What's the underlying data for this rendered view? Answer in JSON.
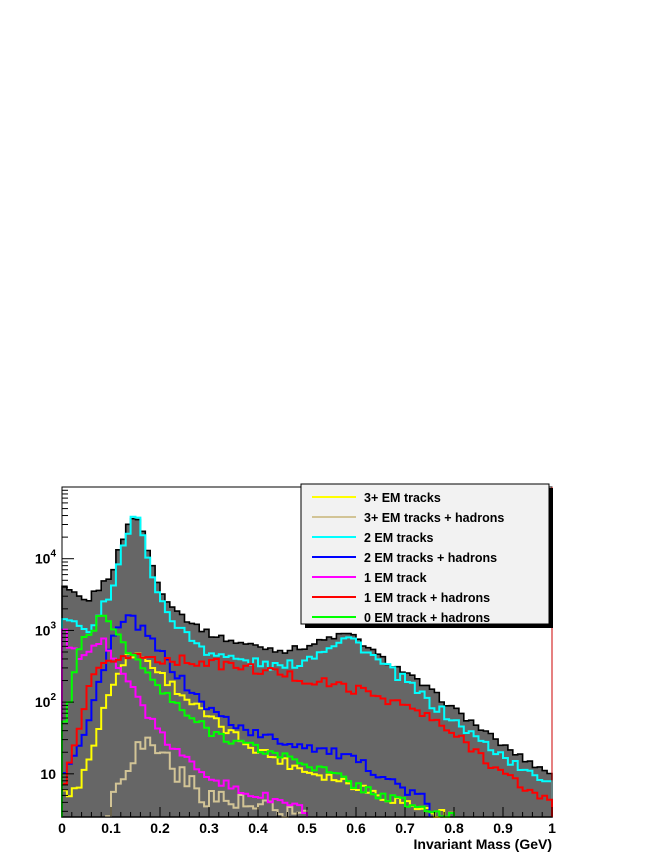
{
  "chart_data": {
    "type": "histogram",
    "xlabel": "Invariant Mass (GeV)",
    "ylabel": "",
    "xlim": [
      0,
      1
    ],
    "ylim": [
      2.5,
      100000
    ],
    "yscale": "log",
    "legend_placement": "top-right",
    "x_ticks": [
      "0",
      "0.1",
      "0.2",
      "0.3",
      "0.4",
      "0.5",
      "0.6",
      "0.7",
      "0.8",
      "0.9",
      "1"
    ],
    "y_ticks": [
      {
        "value": 10,
        "base": "10",
        "exp": ""
      },
      {
        "value": 100,
        "base": "10",
        "exp": "2"
      },
      {
        "value": 1000,
        "base": "10",
        "exp": "3"
      },
      {
        "value": 10000,
        "base": "10",
        "exp": "4"
      }
    ],
    "total": {
      "name": "",
      "color": "#666666",
      "x": [
        0,
        0.05,
        0.1,
        0.13,
        0.15,
        0.17,
        0.2,
        0.25,
        0.3,
        0.35,
        0.4,
        0.45,
        0.5,
        0.55,
        0.58,
        0.6,
        0.65,
        0.7,
        0.75,
        0.8,
        0.85,
        0.9,
        0.95,
        1.0
      ],
      "y": [
        4000,
        2500,
        6000,
        25000,
        45000,
        18000,
        3500,
        1500,
        900,
        700,
        600,
        520,
        600,
        800,
        900,
        780,
        420,
        260,
        150,
        80,
        45,
        25,
        15,
        10
      ]
    },
    "series": [
      {
        "name": "3+ EM tracks",
        "color": "#ffff00",
        "x": [
          0,
          0.03,
          0.06,
          0.09,
          0.12,
          0.15,
          0.18,
          0.2,
          0.25,
          0.3,
          0.35,
          0.4,
          0.45,
          0.5,
          0.55,
          0.6,
          0.65,
          0.7,
          0.75,
          0.8
        ],
        "y": [
          5,
          6,
          20,
          100,
          350,
          500,
          350,
          250,
          120,
          60,
          35,
          22,
          15,
          11,
          9,
          7,
          5,
          4,
          3,
          2.5
        ]
      },
      {
        "name": "3+ EM tracks + hadrons",
        "color": "#d2c496",
        "x": [
          0.09,
          0.1,
          0.12,
          0.15,
          0.18,
          0.2,
          0.23,
          0.25,
          0.3,
          0.35,
          0.4,
          0.45,
          0.5
        ],
        "y": [
          2.5,
          4,
          10,
          22,
          28,
          22,
          12,
          8,
          5,
          4,
          3,
          3,
          2.5
        ]
      },
      {
        "name": "2 EM tracks",
        "color": "#00ffff",
        "x": [
          0,
          0.05,
          0.1,
          0.13,
          0.15,
          0.17,
          0.2,
          0.25,
          0.3,
          0.35,
          0.4,
          0.45,
          0.5,
          0.55,
          0.58,
          0.6,
          0.65,
          0.7,
          0.75,
          0.8,
          0.85,
          0.9,
          0.95,
          1.0
        ],
        "y": [
          1500,
          900,
          3500,
          20000,
          42000,
          16000,
          2500,
          900,
          500,
          400,
          350,
          300,
          400,
          650,
          800,
          700,
          350,
          200,
          100,
          55,
          30,
          18,
          10,
          8
        ]
      },
      {
        "name": "2 EM tracks + hadrons",
        "color": "#0000ff",
        "x": [
          0,
          0.05,
          0.08,
          0.1,
          0.12,
          0.14,
          0.16,
          0.2,
          0.25,
          0.3,
          0.35,
          0.4,
          0.45,
          0.5,
          0.55,
          0.6,
          0.65,
          0.7,
          0.75
        ],
        "y": [
          10,
          40,
          250,
          700,
          1200,
          1500,
          1100,
          500,
          180,
          80,
          50,
          35,
          28,
          25,
          20,
          15,
          10,
          6,
          4
        ]
      },
      {
        "name": "1 EM track",
        "color": "#ff00ff",
        "x": [
          0,
          0.02,
          0.05,
          0.08,
          0.1,
          0.12,
          0.15,
          0.18,
          0.2,
          0.25,
          0.3,
          0.35,
          0.4,
          0.45,
          0.5
        ],
        "y": [
          1200,
          500,
          400,
          700,
          550,
          300,
          130,
          60,
          35,
          16,
          10,
          6,
          5,
          4,
          3
        ]
      },
      {
        "name": "1 EM track + hadrons",
        "color": "#ff0000",
        "x": [
          0,
          0.03,
          0.06,
          0.1,
          0.15,
          0.2,
          0.25,
          0.3,
          0.35,
          0.4,
          0.45,
          0.5,
          0.55,
          0.6,
          0.65,
          0.7,
          0.75,
          0.8,
          0.85,
          0.9,
          0.95,
          1.0
        ],
        "y": [
          5,
          30,
          200,
          400,
          450,
          400,
          380,
          350,
          320,
          280,
          250,
          200,
          180,
          150,
          120,
          90,
          60,
          35,
          20,
          10,
          6,
          4
        ]
      },
      {
        "name": "0 EM track + hadrons",
        "color": "#00ff00",
        "x": [
          0,
          0.03,
          0.05,
          0.08,
          0.1,
          0.12,
          0.15,
          0.2,
          0.25,
          0.3,
          0.35,
          0.4,
          0.45,
          0.5,
          0.55,
          0.6,
          0.65,
          0.7,
          0.75,
          0.8
        ],
        "y": [
          30,
          400,
          900,
          1500,
          1200,
          800,
          400,
          150,
          70,
          40,
          30,
          22,
          18,
          14,
          10,
          7,
          5,
          4,
          3,
          2.5
        ]
      }
    ]
  }
}
